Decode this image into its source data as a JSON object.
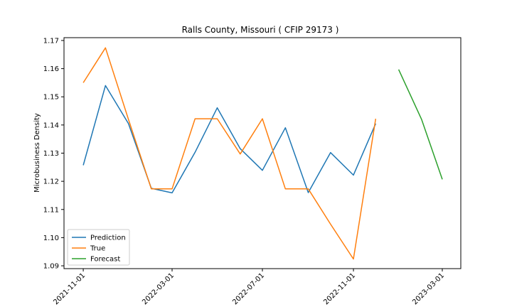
{
  "chart_data": {
    "type": "line",
    "title": "Ralls County, Missouri ( CFIP 29173 )",
    "xlabel": "",
    "ylabel": "Microbusiness Density",
    "x_tick_labels": [
      "2021-11-01",
      "2022-03-01",
      "2022-07-01",
      "2022-11-01",
      "2023-03-01"
    ],
    "y_ticks": [
      1.09,
      1.1,
      1.11,
      1.12,
      1.13,
      1.14,
      1.15,
      1.16,
      1.17
    ],
    "y_tick_labels": [
      "1.09",
      "1.10",
      "1.11",
      "1.12",
      "1.13",
      "1.14",
      "1.15",
      "1.16",
      "1.17"
    ],
    "xlim": [
      "2021-10-06",
      "2023-03-26"
    ],
    "ylim": [
      1.089,
      1.171
    ],
    "grid": false,
    "legend_position": "lower-left",
    "series": [
      {
        "name": "Prediction",
        "color": "#1f77b4",
        "x": [
          "2021-11-01",
          "2021-12-01",
          "2022-01-01",
          "2022-02-01",
          "2022-03-01",
          "2022-04-01",
          "2022-05-01",
          "2022-06-01",
          "2022-07-01",
          "2022-08-01",
          "2022-09-01",
          "2022-10-01",
          "2022-11-01",
          "2022-12-01"
        ],
        "values": [
          1.1257,
          1.154,
          1.1405,
          1.1175,
          1.1159,
          1.1303,
          1.1461,
          1.1316,
          1.1239,
          1.139,
          1.116,
          1.1302,
          1.1222,
          1.1405
        ]
      },
      {
        "name": "True",
        "color": "#ff7f0e",
        "x": [
          "2021-11-01",
          "2021-12-01",
          "2022-01-01",
          "2022-02-01",
          "2022-03-01",
          "2022-04-01",
          "2022-05-01",
          "2022-06-01",
          "2022-07-01",
          "2022-08-01",
          "2022-09-01",
          "2022-10-01",
          "2022-11-01",
          "2022-12-01"
        ],
        "values": [
          1.155,
          1.1674,
          1.142,
          1.1173,
          1.1173,
          1.1422,
          1.1422,
          1.1297,
          1.1422,
          1.1173,
          1.1173,
          1.1048,
          1.0924,
          1.1422
        ]
      },
      {
        "name": "Forecast",
        "color": "#2ca02c",
        "x": [
          "2023-01-01",
          "2023-02-01",
          "2023-03-01"
        ],
        "values": [
          1.1597,
          1.142,
          1.1207
        ]
      }
    ]
  }
}
